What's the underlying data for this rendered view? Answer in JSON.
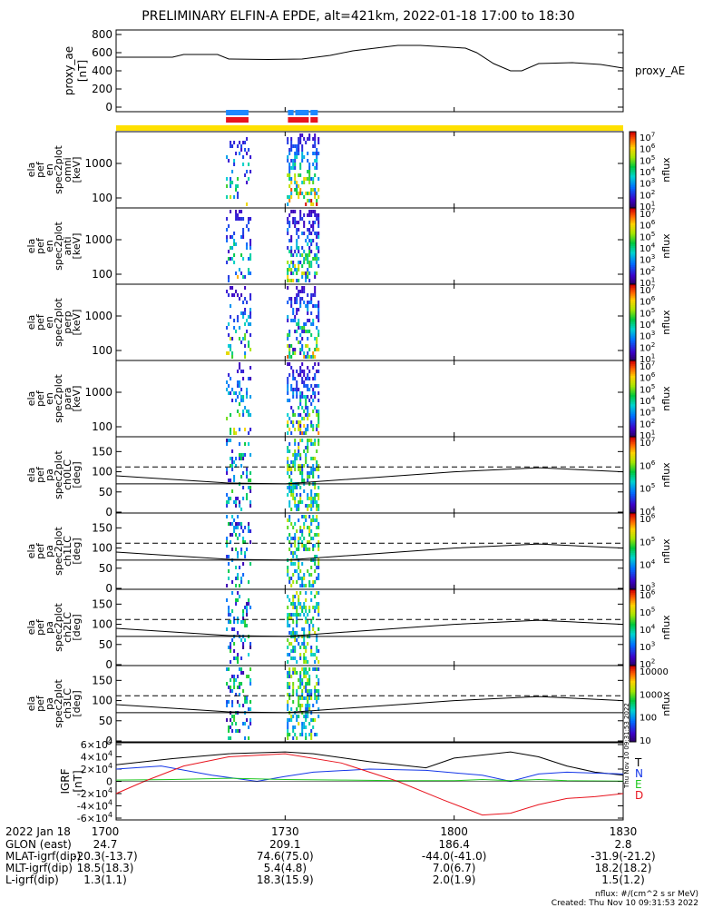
{
  "title": "PRELIMINARY ELFIN-A EPDE, alt=421km, 2022-01-18 17:00 to 18:30",
  "colors": {
    "blue_bar": "#1e88ff",
    "red_bar": "#e8141e",
    "yellow_bar": "#ffe000",
    "T": "#000000",
    "N": "#1436e8",
    "E": "#1ec81e",
    "D": "#e8141e"
  },
  "chart_data": [
    {
      "id": "proxy_ae",
      "type": "line",
      "ylabel": [
        "proxy_ae",
        "[nT]"
      ],
      "side_label": "proxy_AE",
      "yticks": [
        "800",
        "600",
        "400",
        "200",
        "0"
      ],
      "ylim": [
        -50,
        850
      ],
      "x": [
        1700,
        1703,
        1710,
        1712,
        1718,
        1720,
        1727,
        1733,
        1738,
        1742,
        1750,
        1754,
        1802,
        1804,
        1807,
        1810,
        1812,
        1815,
        1821,
        1826,
        1830
      ],
      "y": [
        550,
        550,
        550,
        580,
        580,
        530,
        525,
        530,
        570,
        620,
        680,
        680,
        650,
        600,
        480,
        400,
        400,
        480,
        490,
        470,
        430
      ]
    },
    {
      "id": "sci_zones",
      "type": "bar",
      "blue": [
        [
          1719.5,
          1723.5
        ],
        [
          1730.5,
          1731.5
        ],
        [
          1731.8,
          1734.2
        ],
        [
          1734.5,
          1735.8
        ]
      ],
      "red": [
        [
          1719.5,
          1723.5
        ],
        [
          1730.5,
          1734.2
        ],
        [
          1734.5,
          1735.8
        ]
      ]
    },
    {
      "id": "pef_en_omni",
      "type": "heatmap",
      "ylabel": [
        "ela",
        "pef",
        "en",
        "spec2plot",
        "omni",
        "[keV]"
      ],
      "yticks": [
        "1000",
        "100"
      ],
      "cb_ticks": [
        "10^7",
        "10^6",
        "10^5",
        "10^4",
        "10^3",
        "10^2",
        "10^1"
      ],
      "cb_label": "nflux"
    },
    {
      "id": "pef_en_anti",
      "type": "heatmap",
      "ylabel": [
        "ela",
        "pef",
        "en",
        "spec2plot",
        "anti",
        "[keV]"
      ],
      "yticks": [
        "1000",
        "100"
      ],
      "cb_ticks": [
        "10^7",
        "10^6",
        "10^5",
        "10^4",
        "10^3",
        "10^2",
        "10^1"
      ],
      "cb_label": "nflux"
    },
    {
      "id": "pef_en_perp",
      "type": "heatmap",
      "ylabel": [
        "ela",
        "pef",
        "en",
        "spec2plot",
        "perp",
        "[keV]"
      ],
      "yticks": [
        "1000",
        "100"
      ],
      "cb_ticks": [
        "10^7",
        "10^6",
        "10^5",
        "10^4",
        "10^3",
        "10^2",
        "10^1"
      ],
      "cb_label": "nflux"
    },
    {
      "id": "pef_en_para",
      "type": "heatmap",
      "ylabel": [
        "ela",
        "pef",
        "en",
        "spec2plot",
        "para",
        "[keV]"
      ],
      "yticks": [
        "1000",
        "100"
      ],
      "cb_ticks": [
        "10^7",
        "10^6",
        "10^5",
        "10^4",
        "10^3",
        "10^2",
        "10^1"
      ],
      "cb_label": "nflux"
    },
    {
      "id": "pa_ch0",
      "type": "heatmap",
      "ylabel": [
        "ela",
        "pef",
        "pa",
        "spec2plot",
        "ch0LC",
        "[deg]"
      ],
      "yticks": [
        "150",
        "100",
        "50",
        "0"
      ],
      "cb_ticks": [
        "10^7",
        "10^6",
        "10^5",
        "10^4"
      ],
      "cb_label": "nflux"
    },
    {
      "id": "pa_ch1",
      "type": "heatmap",
      "ylabel": [
        "ela",
        "pef",
        "pa",
        "spec2plot",
        "ch1LC",
        "[deg]"
      ],
      "yticks": [
        "150",
        "100",
        "50",
        "0"
      ],
      "cb_ticks": [
        "10^6",
        "10^5",
        "10^4",
        "10^3"
      ],
      "cb_label": "nflux"
    },
    {
      "id": "pa_ch2",
      "type": "heatmap",
      "ylabel": [
        "ela",
        "pef",
        "pa",
        "spec2plot",
        "ch2LC",
        "[deg]"
      ],
      "yticks": [
        "150",
        "100",
        "50",
        "0"
      ],
      "cb_ticks": [
        "10^6",
        "10^5",
        "10^4",
        "10^3",
        "10^2"
      ],
      "cb_label": "nflux"
    },
    {
      "id": "pa_ch3",
      "type": "heatmap",
      "ylabel": [
        "ela",
        "pef",
        "pa",
        "spec2plot",
        "ch3LC",
        "[deg]"
      ],
      "yticks": [
        "150",
        "100",
        "50",
        "0"
      ],
      "cb_ticks": [
        "10000",
        "1000",
        "100",
        "10"
      ],
      "cb_label": "nflux"
    },
    {
      "id": "igrf",
      "type": "line",
      "ylabel": [
        "IGRF",
        "[nT]"
      ],
      "yticks": [
        "6×10^4",
        "4×10^4",
        "2×10^4",
        "0",
        "-2×10^4",
        "-4×10^4",
        "-6×10^4"
      ],
      "ylim": [
        -60000,
        60000
      ],
      "series": [
        {
          "name": "T",
          "x": [
            1700,
            1710,
            1720,
            1730,
            1735,
            1745,
            1755,
            1800,
            1810,
            1815,
            1820,
            1825,
            1830
          ],
          "y": [
            27000,
            37000,
            45000,
            48000,
            45000,
            32000,
            22000,
            38000,
            48000,
            40000,
            25000,
            15000,
            10000
          ]
        },
        {
          "name": "N",
          "x": [
            1700,
            1708,
            1717,
            1725,
            1730,
            1735,
            1745,
            1755,
            1805,
            1810,
            1815,
            1820,
            1830
          ],
          "y": [
            20000,
            25000,
            10000,
            0,
            8000,
            15000,
            20000,
            18000,
            10000,
            0,
            12000,
            15000,
            12000
          ]
        },
        {
          "name": "E",
          "x": [
            1700,
            1710,
            1720,
            1730,
            1740,
            1750,
            1800,
            1805,
            1810,
            1815,
            1820,
            1830
          ],
          "y": [
            2000,
            3000,
            5000,
            3000,
            2000,
            1000,
            1000,
            3000,
            1000,
            3000,
            1000,
            500
          ]
        },
        {
          "name": "D",
          "x": [
            1700,
            1705,
            1712,
            1720,
            1730,
            1740,
            1750,
            1758,
            1805,
            1810,
            1815,
            1820,
            1825,
            1830
          ],
          "y": [
            -20000,
            0,
            25000,
            40000,
            45000,
            30000,
            0,
            -30000,
            -55000,
            -52000,
            -38000,
            -28000,
            -25000,
            -20000
          ]
        }
      ],
      "legend": [
        "T",
        "N",
        "E",
        "D"
      ]
    }
  ],
  "time_axis": {
    "labels": [
      "1700",
      "1730",
      "1800",
      "1830"
    ],
    "values": [
      1700,
      1730,
      1800,
      1830
    ],
    "range": [
      1700,
      1830
    ]
  },
  "footer_rows": [
    {
      "label": "2022 Jan 18",
      "vals": [
        "1700",
        "1730",
        "1800",
        "1830"
      ]
    },
    {
      "label": "GLON (east)",
      "vals": [
        "24.7",
        "209.1",
        "186.4",
        "2.8"
      ]
    },
    {
      "label": "MLAT-igrf(dip)",
      "vals": [
        "-20.3(-13.7)",
        "74.6(75.0)",
        "-44.0(-41.0)",
        "-31.9(-21.2)"
      ]
    },
    {
      "label": "MLT-igrf(dip)",
      "vals": [
        "18.5(18.3)",
        "5.4(4.8)",
        "7.0(6.7)",
        "18.2(18.2)"
      ]
    },
    {
      "label": "L-igrf(dip)",
      "vals": [
        "1.3(1.1)",
        "18.3(15.9)",
        "2.0(1.9)",
        "1.5(1.2)"
      ]
    }
  ],
  "units_note": "nflux: #/(cm^2 s sr MeV)",
  "created": "Created: Thu Nov 10 09:31:53 2022",
  "side_stamp": "Thu Nov 10 09:31:53 2022"
}
